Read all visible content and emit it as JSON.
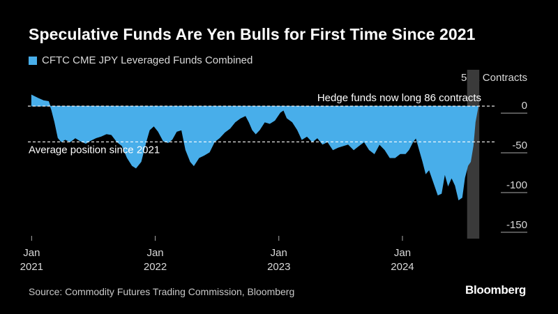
{
  "title": "Speculative Funds Are Yen Bulls for First Time Since 2021",
  "legend": {
    "label": "CFTC CME JPY Leveraged Funds Combined",
    "color": "#48aeea"
  },
  "units_label": "50K Contracts",
  "source": "Source: Commodity Futures Trading Commission, Bloomberg",
  "brand": "Bloomberg",
  "colors": {
    "background": "#000000",
    "area": "#48aeea",
    "highlight": "#3a3a3a",
    "reference_line": "#ffffff"
  },
  "chart_data": {
    "type": "area",
    "y_unit": "50K contracts",
    "ylim": [
      -165,
      15
    ],
    "xlim": [
      "2020-12-21",
      "2024-10-01"
    ],
    "y_ticks": [
      {
        "value": 0,
        "label": "0"
      },
      {
        "value": -50,
        "label": "-50"
      },
      {
        "value": -100,
        "label": "-100"
      },
      {
        "value": -150,
        "label": "-150"
      }
    ],
    "x_ticks": [
      {
        "date": "2021-01-01",
        "label_month": "Jan",
        "label_year": "2021"
      },
      {
        "date": "2022-01-01",
        "label_month": "Jan",
        "label_year": "2022"
      },
      {
        "date": "2023-01-01",
        "label_month": "Jan",
        "label_year": "2023"
      },
      {
        "date": "2024-01-01",
        "label_month": "Jan",
        "label_year": "2024"
      }
    ],
    "highlight_range": [
      "2024-07-10",
      "2024-08-15"
    ],
    "reference_lines": [
      {
        "value": 0,
        "label": "Hedge funds now long 86 contracts",
        "label_position": "above-right"
      },
      {
        "value": -45,
        "label": "Average position since 2021",
        "label_position": "below-left"
      }
    ],
    "series": [
      {
        "name": "CFTC CME JPY Leveraged Funds Combined",
        "points": [
          [
            "2021-01-01",
            14
          ],
          [
            "2021-01-20",
            10
          ],
          [
            "2021-02-05",
            7
          ],
          [
            "2021-02-20",
            6
          ],
          [
            "2021-03-01",
            -5
          ],
          [
            "2021-03-10",
            -20
          ],
          [
            "2021-03-20",
            -40
          ],
          [
            "2021-03-30",
            -45
          ],
          [
            "2021-04-10",
            -42
          ],
          [
            "2021-04-25",
            -45
          ],
          [
            "2021-05-10",
            -40
          ],
          [
            "2021-05-25",
            -44
          ],
          [
            "2021-06-10",
            -47
          ],
          [
            "2021-06-25",
            -43
          ],
          [
            "2021-07-10",
            -40
          ],
          [
            "2021-07-25",
            -38
          ],
          [
            "2021-08-10",
            -35
          ],
          [
            "2021-08-25",
            -36
          ],
          [
            "2021-09-10",
            -45
          ],
          [
            "2021-09-25",
            -50
          ],
          [
            "2021-10-10",
            -65
          ],
          [
            "2021-10-25",
            -75
          ],
          [
            "2021-11-05",
            -78
          ],
          [
            "2021-11-20",
            -70
          ],
          [
            "2021-12-05",
            -45
          ],
          [
            "2021-12-15",
            -30
          ],
          [
            "2021-12-28",
            -25
          ],
          [
            "2022-01-10",
            -32
          ],
          [
            "2022-01-25",
            -44
          ],
          [
            "2022-02-08",
            -46
          ],
          [
            "2022-02-20",
            -42
          ],
          [
            "2022-03-05",
            -32
          ],
          [
            "2022-03-20",
            -30
          ],
          [
            "2022-04-01",
            -55
          ],
          [
            "2022-04-15",
            -70
          ],
          [
            "2022-04-25",
            -75
          ],
          [
            "2022-05-10",
            -65
          ],
          [
            "2022-05-25",
            -62
          ],
          [
            "2022-06-10",
            -58
          ],
          [
            "2022-06-25",
            -45
          ],
          [
            "2022-07-10",
            -40
          ],
          [
            "2022-07-25",
            -33
          ],
          [
            "2022-08-10",
            -28
          ],
          [
            "2022-08-25",
            -20
          ],
          [
            "2022-09-10",
            -15
          ],
          [
            "2022-09-25",
            -12
          ],
          [
            "2022-10-05",
            -20
          ],
          [
            "2022-10-15",
            -30
          ],
          [
            "2022-10-25",
            -35
          ],
          [
            "2022-11-05",
            -30
          ],
          [
            "2022-11-20",
            -20
          ],
          [
            "2022-12-05",
            -22
          ],
          [
            "2022-12-20",
            -18
          ],
          [
            "2023-01-05",
            -8
          ],
          [
            "2023-01-15",
            -5
          ],
          [
            "2023-01-25",
            -15
          ],
          [
            "2023-02-10",
            -20
          ],
          [
            "2023-02-25",
            -30
          ],
          [
            "2023-03-10",
            -42
          ],
          [
            "2023-03-25",
            -38
          ],
          [
            "2023-04-10",
            -45
          ],
          [
            "2023-04-25",
            -40
          ],
          [
            "2023-05-10",
            -48
          ],
          [
            "2023-05-25",
            -45
          ],
          [
            "2023-06-10",
            -55
          ],
          [
            "2023-06-25",
            -52
          ],
          [
            "2023-07-10",
            -50
          ],
          [
            "2023-07-25",
            -48
          ],
          [
            "2023-08-10",
            -55
          ],
          [
            "2023-08-25",
            -50
          ],
          [
            "2023-09-10",
            -45
          ],
          [
            "2023-09-25",
            -55
          ],
          [
            "2023-10-10",
            -60
          ],
          [
            "2023-10-25",
            -48
          ],
          [
            "2023-11-10",
            -55
          ],
          [
            "2023-11-25",
            -65
          ],
          [
            "2023-12-10",
            -65
          ],
          [
            "2023-12-25",
            -60
          ],
          [
            "2024-01-10",
            -60
          ],
          [
            "2024-01-20",
            -55
          ],
          [
            "2024-02-01",
            -45
          ],
          [
            "2024-02-10",
            -40
          ],
          [
            "2024-02-20",
            -55
          ],
          [
            "2024-03-01",
            -70
          ],
          [
            "2024-03-10",
            -85
          ],
          [
            "2024-03-20",
            -80
          ],
          [
            "2024-04-01",
            -95
          ],
          [
            "2024-04-15",
            -112
          ],
          [
            "2024-04-25",
            -110
          ],
          [
            "2024-05-05",
            -85
          ],
          [
            "2024-05-15",
            -100
          ],
          [
            "2024-05-25",
            -90
          ],
          [
            "2024-06-05",
            -100
          ],
          [
            "2024-06-15",
            -118
          ],
          [
            "2024-06-25",
            -115
          ],
          [
            "2024-07-03",
            -90
          ],
          [
            "2024-07-12",
            -75
          ],
          [
            "2024-07-20",
            -70
          ],
          [
            "2024-07-28",
            -50
          ],
          [
            "2024-08-03",
            -20
          ],
          [
            "2024-08-12",
            0.1
          ]
        ]
      }
    ]
  }
}
